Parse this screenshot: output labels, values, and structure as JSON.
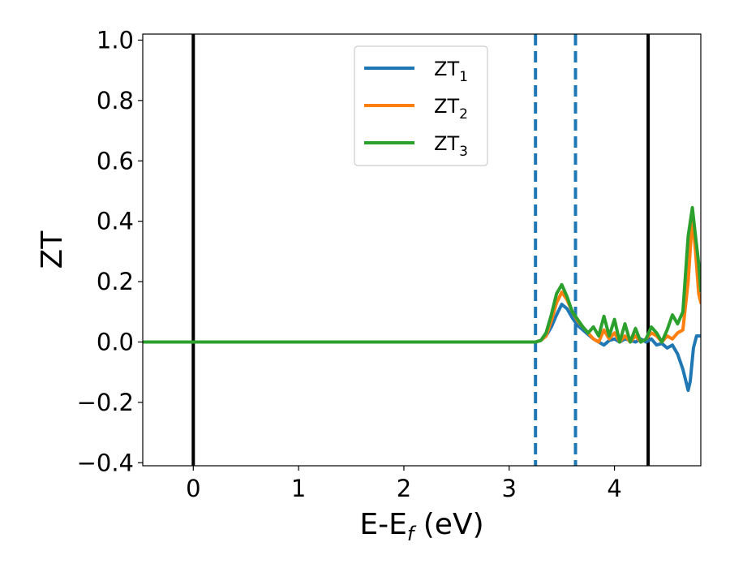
{
  "chart_data": {
    "type": "line",
    "title": "",
    "xlabel": {
      "main": "E-E",
      "sub": "f",
      "suffix": " (eV)"
    },
    "ylabel": "ZT",
    "xlim": [
      -0.48,
      4.82
    ],
    "ylim": [
      -0.41,
      1.02
    ],
    "xticks": [
      0,
      1,
      2,
      3,
      4
    ],
    "yticks": [
      -0.4,
      -0.2,
      0.0,
      0.2,
      0.4,
      0.6,
      0.8,
      1.0
    ],
    "xtick_labels": [
      "0",
      "1",
      "2",
      "3",
      "4"
    ],
    "ytick_labels": [
      "−0.4",
      "−0.2",
      "0.0",
      "0.2",
      "0.4",
      "0.6",
      "0.8",
      "1.0"
    ],
    "grid": false,
    "legend": {
      "position": "upper-center"
    },
    "vlines": [
      {
        "x": 0.0,
        "style": "solid",
        "color": "#000000"
      },
      {
        "x": 3.25,
        "style": "dashed",
        "color": "#1f77b4"
      },
      {
        "x": 3.63,
        "style": "dashed",
        "color": "#1f77b4"
      },
      {
        "x": 4.32,
        "style": "solid",
        "color": "#000000"
      }
    ],
    "series": [
      {
        "name": "ZT",
        "subscript": "1",
        "color": "#1f77b4",
        "x": [
          -0.48,
          3.25,
          3.3,
          3.35,
          3.4,
          3.45,
          3.5,
          3.55,
          3.6,
          3.65,
          3.7,
          3.75,
          3.8,
          3.85,
          3.9,
          3.95,
          4.0,
          4.05,
          4.1,
          4.15,
          4.2,
          4.25,
          4.3,
          4.35,
          4.4,
          4.45,
          4.5,
          4.55,
          4.6,
          4.65,
          4.7,
          4.72,
          4.75,
          4.78,
          4.82
        ],
        "y": [
          0.0,
          0.0,
          0.005,
          0.02,
          0.05,
          0.09,
          0.125,
          0.11,
          0.08,
          0.055,
          0.04,
          0.025,
          0.01,
          0.0,
          -0.01,
          0.005,
          0.01,
          0.0,
          0.01,
          0.005,
          0.0,
          0.01,
          0.0,
          0.01,
          -0.01,
          -0.005,
          -0.02,
          -0.01,
          -0.04,
          -0.09,
          -0.16,
          -0.13,
          -0.02,
          0.02,
          0.02
        ]
      },
      {
        "name": "ZT",
        "subscript": "2",
        "color": "#ff7f0e",
        "x": [
          -0.48,
          3.25,
          3.3,
          3.35,
          3.4,
          3.45,
          3.5,
          3.55,
          3.6,
          3.65,
          3.7,
          3.75,
          3.8,
          3.85,
          3.9,
          3.95,
          4.0,
          4.05,
          4.1,
          4.15,
          4.2,
          4.25,
          4.3,
          4.35,
          4.4,
          4.45,
          4.5,
          4.55,
          4.6,
          4.65,
          4.7,
          4.74,
          4.77,
          4.8,
          4.82
        ],
        "y": [
          0.0,
          0.0,
          0.005,
          0.02,
          0.07,
          0.13,
          0.165,
          0.14,
          0.1,
          0.07,
          0.05,
          0.03,
          0.01,
          0.0,
          0.04,
          0.01,
          0.03,
          0.0,
          0.02,
          0.0,
          0.02,
          0.0,
          0.01,
          0.03,
          0.02,
          0.0,
          0.02,
          0.01,
          0.03,
          0.04,
          0.2,
          0.41,
          0.3,
          0.16,
          0.13
        ]
      },
      {
        "name": "ZT",
        "subscript": "3",
        "color": "#2ca02c",
        "x": [
          -0.48,
          3.25,
          3.3,
          3.35,
          3.4,
          3.45,
          3.5,
          3.55,
          3.6,
          3.65,
          3.7,
          3.75,
          3.8,
          3.85,
          3.9,
          3.95,
          4.0,
          4.05,
          4.1,
          4.15,
          4.2,
          4.25,
          4.3,
          4.35,
          4.4,
          4.45,
          4.5,
          4.55,
          4.6,
          4.65,
          4.7,
          4.74,
          4.77,
          4.8,
          4.82
        ],
        "y": [
          0.0,
          0.0,
          0.005,
          0.03,
          0.09,
          0.16,
          0.19,
          0.15,
          0.1,
          0.075,
          0.05,
          0.03,
          0.05,
          0.02,
          0.085,
          0.02,
          0.075,
          0.0,
          0.06,
          0.0,
          0.045,
          0.0,
          0.01,
          0.05,
          0.03,
          0.0,
          0.04,
          0.09,
          0.06,
          0.1,
          0.35,
          0.445,
          0.35,
          0.26,
          0.17
        ]
      }
    ]
  }
}
